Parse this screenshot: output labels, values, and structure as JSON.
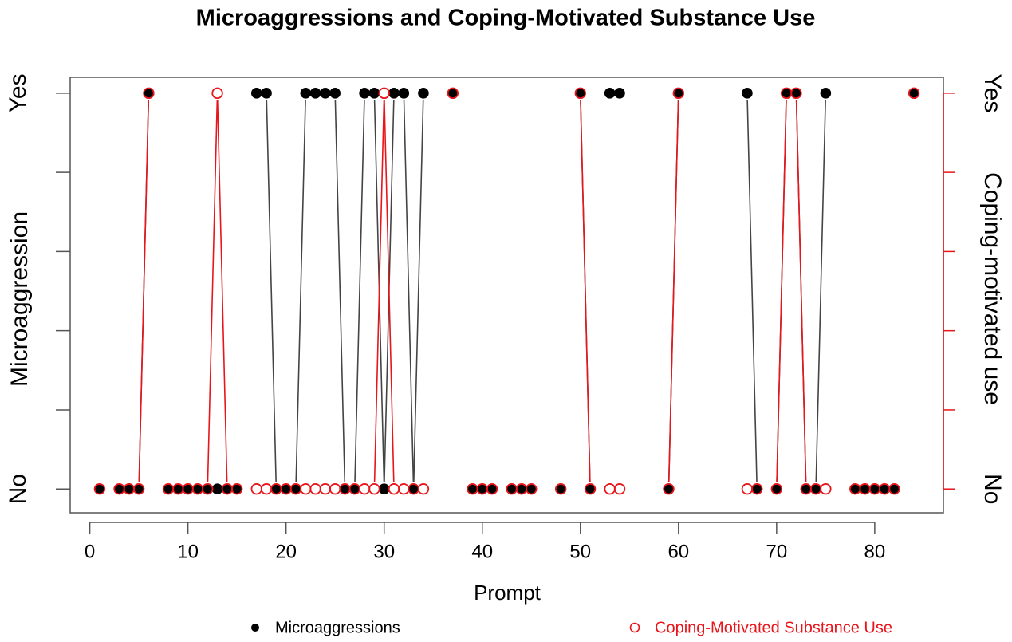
{
  "chart_data": {
    "type": "line",
    "title": "Microaggressions and Coping-Motivated Substance Use",
    "xlabel": "Prompt",
    "ylabel": "Microaggression",
    "y2label": "Coping-motivated use",
    "x": [
      1,
      2,
      3,
      4,
      5,
      6,
      7,
      8,
      9,
      10,
      11,
      12,
      13,
      14,
      15,
      16,
      17,
      18,
      19,
      20,
      21,
      22,
      23,
      24,
      25,
      26,
      27,
      28,
      29,
      30,
      31,
      32,
      33,
      34,
      35,
      36,
      37,
      38,
      39,
      40,
      41,
      42,
      43,
      44,
      45,
      46,
      47,
      48,
      49,
      50,
      51,
      52,
      53,
      54,
      55,
      56,
      57,
      58,
      59,
      60,
      61,
      62,
      63,
      64,
      65,
      66,
      67,
      68,
      69,
      70,
      71,
      72,
      73,
      74,
      75,
      76,
      77,
      78,
      79,
      80,
      81,
      82,
      83,
      84
    ],
    "series": [
      {
        "name": "Microaggressions",
        "color": "#000000",
        "line_color": "#444444",
        "marker": "filled",
        "values": [
          0,
          null,
          0,
          0,
          0,
          1,
          null,
          0,
          0,
          0,
          0,
          0,
          0,
          0,
          0,
          null,
          1,
          1,
          0,
          0,
          0,
          1,
          1,
          1,
          1,
          0,
          0,
          1,
          1,
          0,
          1,
          1,
          0,
          1,
          null,
          null,
          1,
          null,
          0,
          0,
          0,
          null,
          0,
          0,
          0,
          null,
          null,
          0,
          null,
          1,
          0,
          null,
          1,
          1,
          null,
          null,
          null,
          null,
          0,
          1,
          null,
          null,
          null,
          null,
          null,
          null,
          1,
          0,
          null,
          0,
          1,
          1,
          0,
          0,
          1,
          null,
          null,
          0,
          0,
          0,
          0,
          0,
          null,
          1
        ]
      },
      {
        "name": "Coping-Motivated Substance Use",
        "color": "#e8151b",
        "line_color": "#e8151b",
        "marker": "open",
        "axis": "y2",
        "values": [
          0,
          null,
          0,
          0,
          0,
          1,
          null,
          0,
          0,
          0,
          0,
          0,
          1,
          0,
          0,
          null,
          0,
          0,
          0,
          0,
          0,
          0,
          0,
          0,
          0,
          0,
          0,
          0,
          0,
          1,
          0,
          0,
          0,
          0,
          null,
          null,
          1,
          null,
          0,
          0,
          0,
          null,
          0,
          0,
          0,
          null,
          null,
          0,
          null,
          1,
          0,
          null,
          0,
          0,
          null,
          null,
          null,
          null,
          0,
          1,
          null,
          null,
          null,
          null,
          null,
          null,
          0,
          0,
          null,
          0,
          1,
          1,
          0,
          0,
          0,
          null,
          null,
          0,
          0,
          0,
          0,
          0,
          null,
          1
        ]
      }
    ],
    "xlim": [
      -2,
      87
    ],
    "xticks": [
      0,
      10,
      20,
      30,
      40,
      50,
      60,
      70,
      80
    ],
    "ylim": [
      -0.06,
      1.04
    ],
    "yticks": [
      {
        "value": 0,
        "label": "No"
      },
      {
        "value": 0.2,
        "label": null
      },
      {
        "value": 0.4,
        "label": null
      },
      {
        "value": 0.6,
        "label": null
      },
      {
        "value": 0.8,
        "label": null
      },
      {
        "value": 1,
        "label": "Yes"
      }
    ],
    "y2lim": [
      -0.06,
      1.04
    ],
    "y2ticks": [
      {
        "value": 0,
        "label": "No"
      },
      {
        "value": 0.2,
        "label": null
      },
      {
        "value": 0.4,
        "label": null
      },
      {
        "value": 0.6,
        "label": null
      },
      {
        "value": 0.8,
        "label": null
      },
      {
        "value": 1,
        "label": "Yes"
      }
    ],
    "y2_color": "#e8151b"
  }
}
